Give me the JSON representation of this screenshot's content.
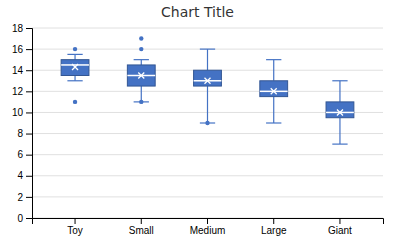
{
  "chart_data": {
    "type": "box",
    "title": "Chart Title",
    "categories": [
      "Toy",
      "Small",
      "Medium",
      "Large",
      "Giant"
    ],
    "boxes": [
      {
        "q1": 13.5,
        "median": 14.5,
        "q3": 15.0,
        "mean": 14.3,
        "whisker_low": 13.0,
        "whisker_high": 15.5,
        "outliers": [
          11.0,
          16.0
        ]
      },
      {
        "q1": 12.5,
        "median": 13.5,
        "q3": 14.5,
        "mean": 13.5,
        "whisker_low": 11.0,
        "whisker_high": 15.0,
        "outliers": [
          11.0,
          16.0,
          17.0
        ]
      },
      {
        "q1": 12.5,
        "median": 13.0,
        "q3": 14.0,
        "mean": 13.0,
        "whisker_low": 9.0,
        "whisker_high": 16.0,
        "outliers": [
          9.0
        ]
      },
      {
        "q1": 11.5,
        "median": 12.0,
        "q3": 13.0,
        "mean": 12.0,
        "whisker_low": 9.0,
        "whisker_high": 15.0,
        "outliers": []
      },
      {
        "q1": 9.5,
        "median": 10.0,
        "q3": 11.0,
        "mean": 10.0,
        "whisker_low": 7.0,
        "whisker_high": 13.0,
        "outliers": []
      }
    ],
    "color": "#4472C4",
    "ylim": [
      0,
      18
    ],
    "yticks": [
      0,
      2,
      4,
      6,
      8,
      10,
      12,
      14,
      16,
      18
    ],
    "grid": true
  }
}
